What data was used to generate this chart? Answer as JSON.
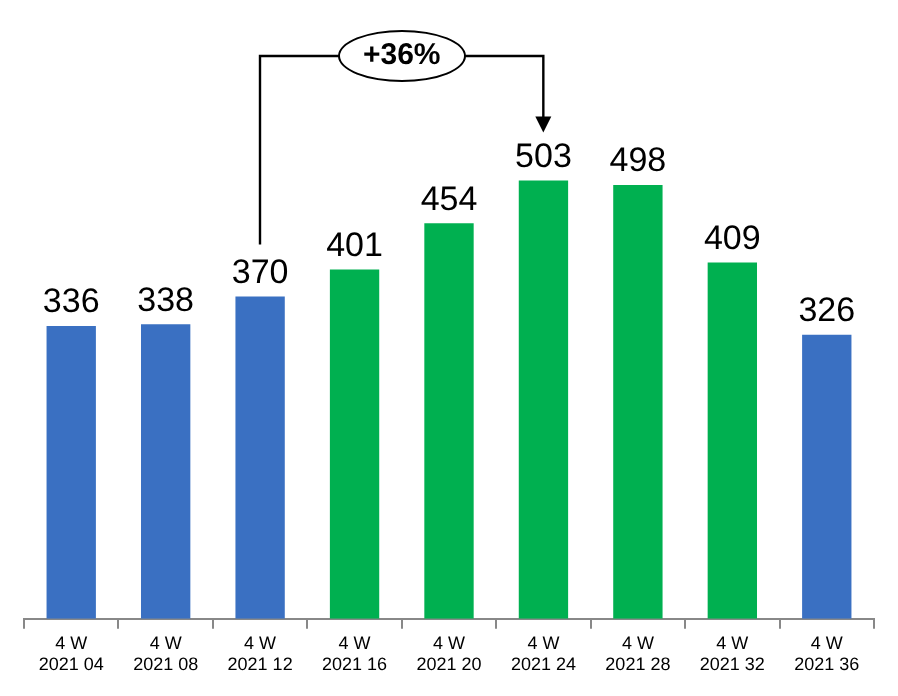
{
  "chart_data": {
    "type": "bar",
    "categories": [
      "4 W\n2021 04",
      "4 W\n2021 08",
      "4 W\n2021 12",
      "4 W\n2021 16",
      "4 W\n2021 20",
      "4 W\n2021 24",
      "4 W\n2021 28",
      "4 W\n2021 32",
      "4 W\n2021 36"
    ],
    "values": [
      336,
      338,
      370,
      401,
      454,
      503,
      498,
      409,
      326
    ],
    "colors": [
      "#3a70c2",
      "#3a70c2",
      "#3a70c2",
      "#00b050",
      "#00b050",
      "#00b050",
      "#00b050",
      "#00b050",
      "#3a70c2"
    ],
    "data_labels": true,
    "grid": false,
    "legend": false,
    "annotations": [
      "+36%"
    ]
  }
}
